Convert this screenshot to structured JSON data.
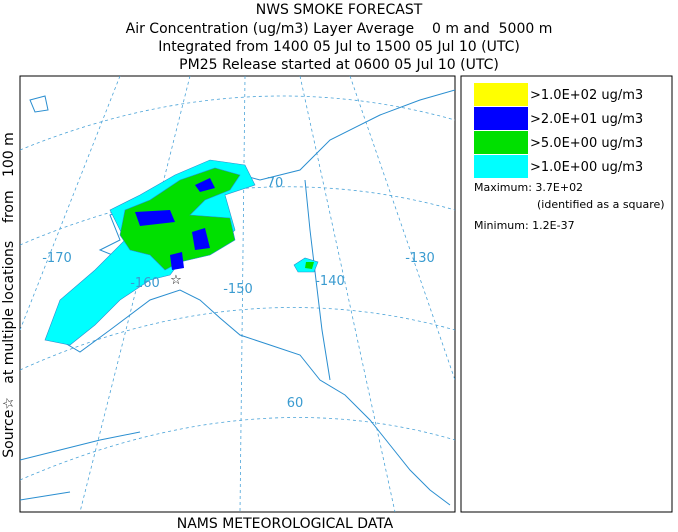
{
  "header": {
    "title": "NWS SMOKE FORECAST",
    "lines": [
      "Air Concentration (ug/m3) Layer Average    0 m and  5000 m",
      "Integrated from 1400 05 Jul to 1500 05 Jul 10 (UTC)",
      "PM25 Release started at 0600 05 Jul 10 (UTC)"
    ]
  },
  "side_label": "Source☆   at multiple locations    from   100 m",
  "footer": "NAMS METEOROLOGICAL DATA",
  "map_labels": [
    "-170",
    "-160",
    "-150",
    "-140",
    "-130",
    "70",
    "60"
  ],
  "legend": {
    "items": [
      {
        "label": ">1.0E+02 ug/m3",
        "color": "#ffff00"
      },
      {
        "label": ">2.0E+01 ug/m3",
        "color": "#0000ff"
      },
      {
        "label": ">5.0E+00 ug/m3",
        "color": "#00e000"
      },
      {
        "label": ">1.0E+00 ug/m3",
        "color": "#00ffff"
      }
    ],
    "maximum": "Maximum: 3.7E+02",
    "maximum_note": "(identified as a square)",
    "minimum": "Minimum: 1.2E-37"
  }
}
